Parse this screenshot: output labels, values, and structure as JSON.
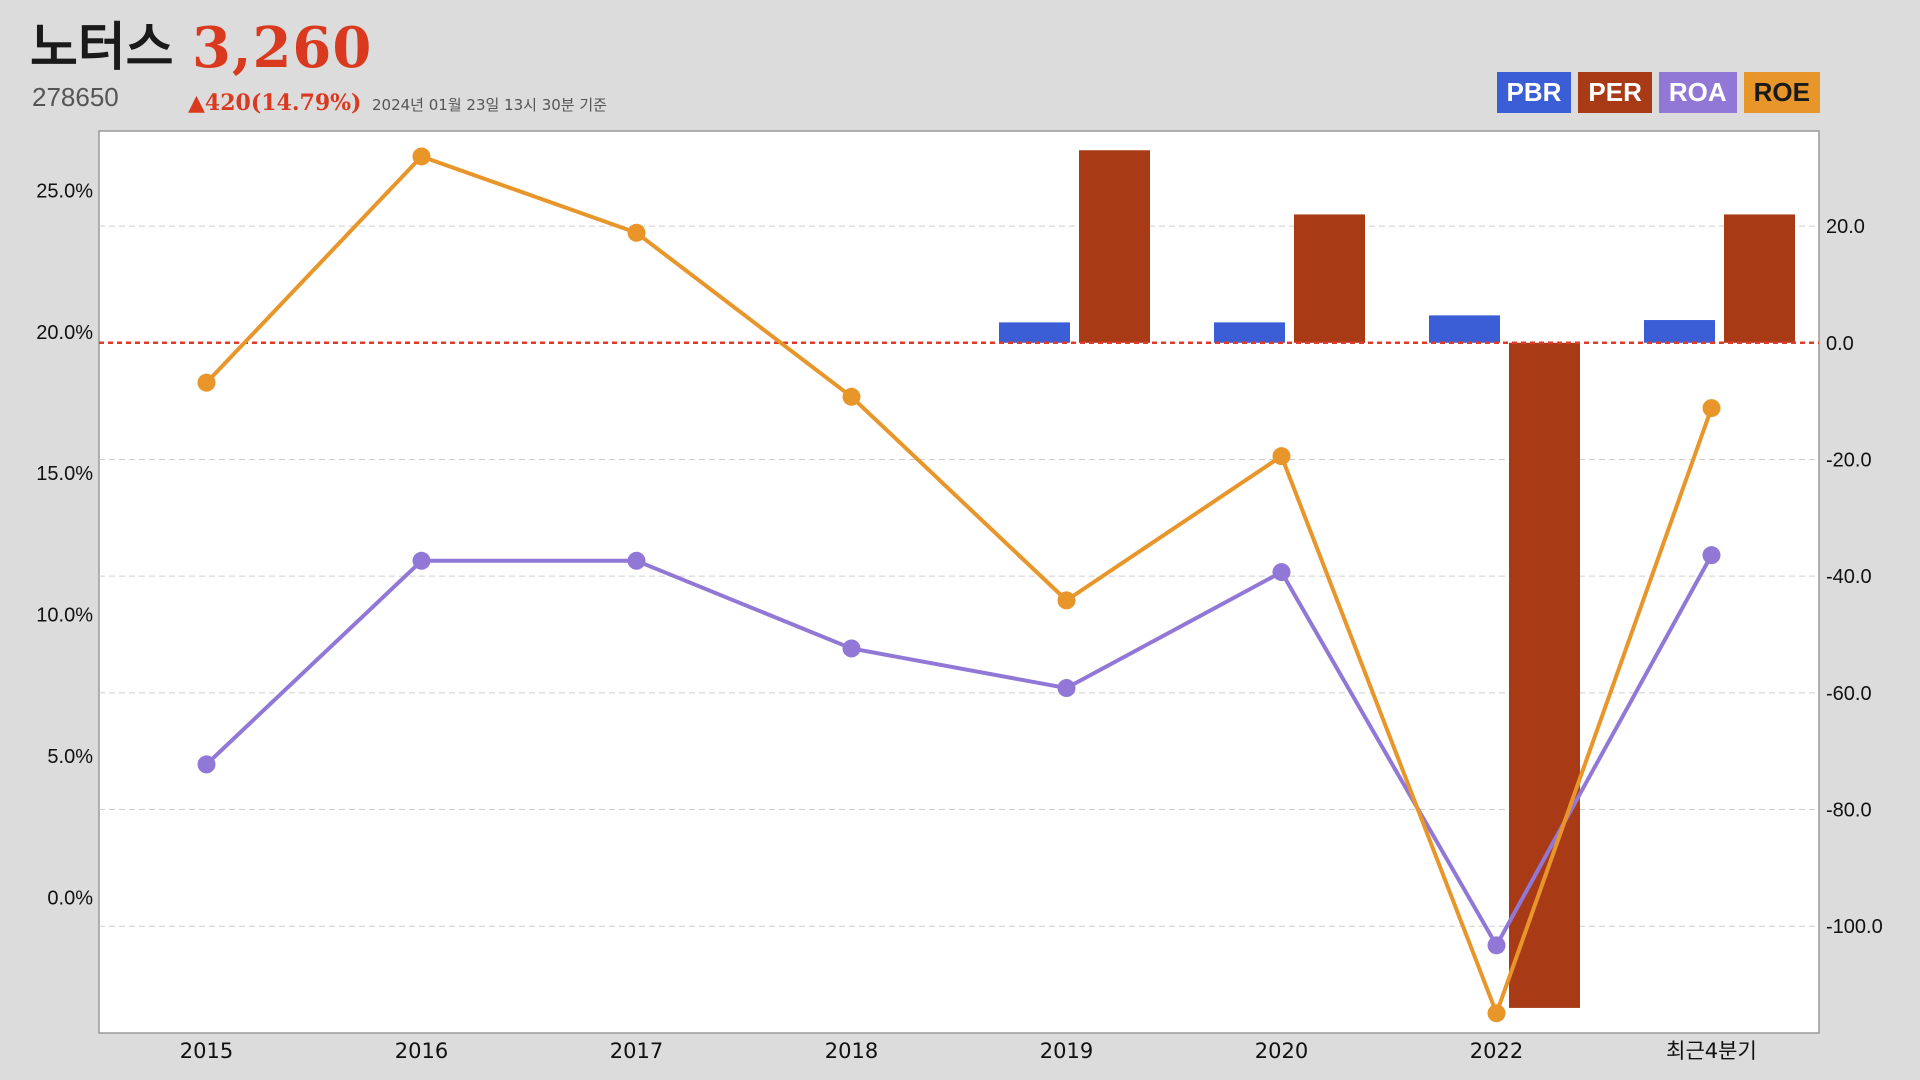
{
  "header": {
    "company_name": "노터스",
    "price": "3,260",
    "code": "278650",
    "change": "▲420(14.79%)",
    "as_of": "2024년 01월 23일 13시 30분 기준"
  },
  "legend": [
    {
      "label": "PBR",
      "color": "#3b5ed6",
      "text_color": "#ffffff"
    },
    {
      "label": "PER",
      "color": "#a83a16",
      "text_color": "#ffffff"
    },
    {
      "label": "ROA",
      "color": "#9178d6",
      "text_color": "#ffffff"
    },
    {
      "label": "ROE",
      "color": "#e8962a",
      "text_color": "#1a1a1a"
    }
  ],
  "chart_data": {
    "type": "bar",
    "categories": [
      "2015",
      "2016",
      "2017",
      "2018",
      "2019",
      "2020",
      "2022",
      "최근4분기"
    ],
    "left_axis": {
      "ticks": [
        "25.0%",
        "20.0%",
        "15.0%",
        "10.0%",
        "5.0%",
        "0.0%"
      ],
      "tick_values": [
        25,
        20,
        15,
        10,
        5,
        0
      ],
      "ylim": [
        -4.8,
        27.1
      ]
    },
    "right_axis": {
      "ticks": [
        "20.0",
        "0.0",
        "-20.0",
        "-40.0",
        "-60.0",
        "-80.0",
        "-100.0"
      ],
      "tick_values": [
        20,
        0,
        -20,
        -40,
        -60,
        -80,
        -100
      ],
      "ylim": [
        -118.3,
        36.3
      ]
    },
    "zero_line": {
      "axis": "right",
      "value": 0,
      "color": "#e03a2a"
    },
    "grid": true,
    "series": [
      {
        "name": "PBR",
        "kind": "bar",
        "axis": "right",
        "color": "#3b5ed6",
        "values": [
          null,
          null,
          null,
          null,
          3.5,
          3.5,
          4.7,
          3.9
        ]
      },
      {
        "name": "PER",
        "kind": "bar",
        "axis": "right",
        "color": "#a83a16",
        "values": [
          null,
          null,
          null,
          null,
          33.0,
          22.0,
          -114.0,
          22.0
        ]
      },
      {
        "name": "ROA",
        "kind": "line",
        "axis": "left",
        "color": "#9178d6",
        "values": [
          4.7,
          11.9,
          11.9,
          8.8,
          7.4,
          11.5,
          -1.7,
          12.1
        ]
      },
      {
        "name": "ROE",
        "kind": "line",
        "axis": "left",
        "color": "#e8962a",
        "values": [
          18.2,
          26.2,
          23.5,
          17.7,
          10.5,
          15.6,
          -4.1,
          17.3
        ]
      }
    ]
  }
}
